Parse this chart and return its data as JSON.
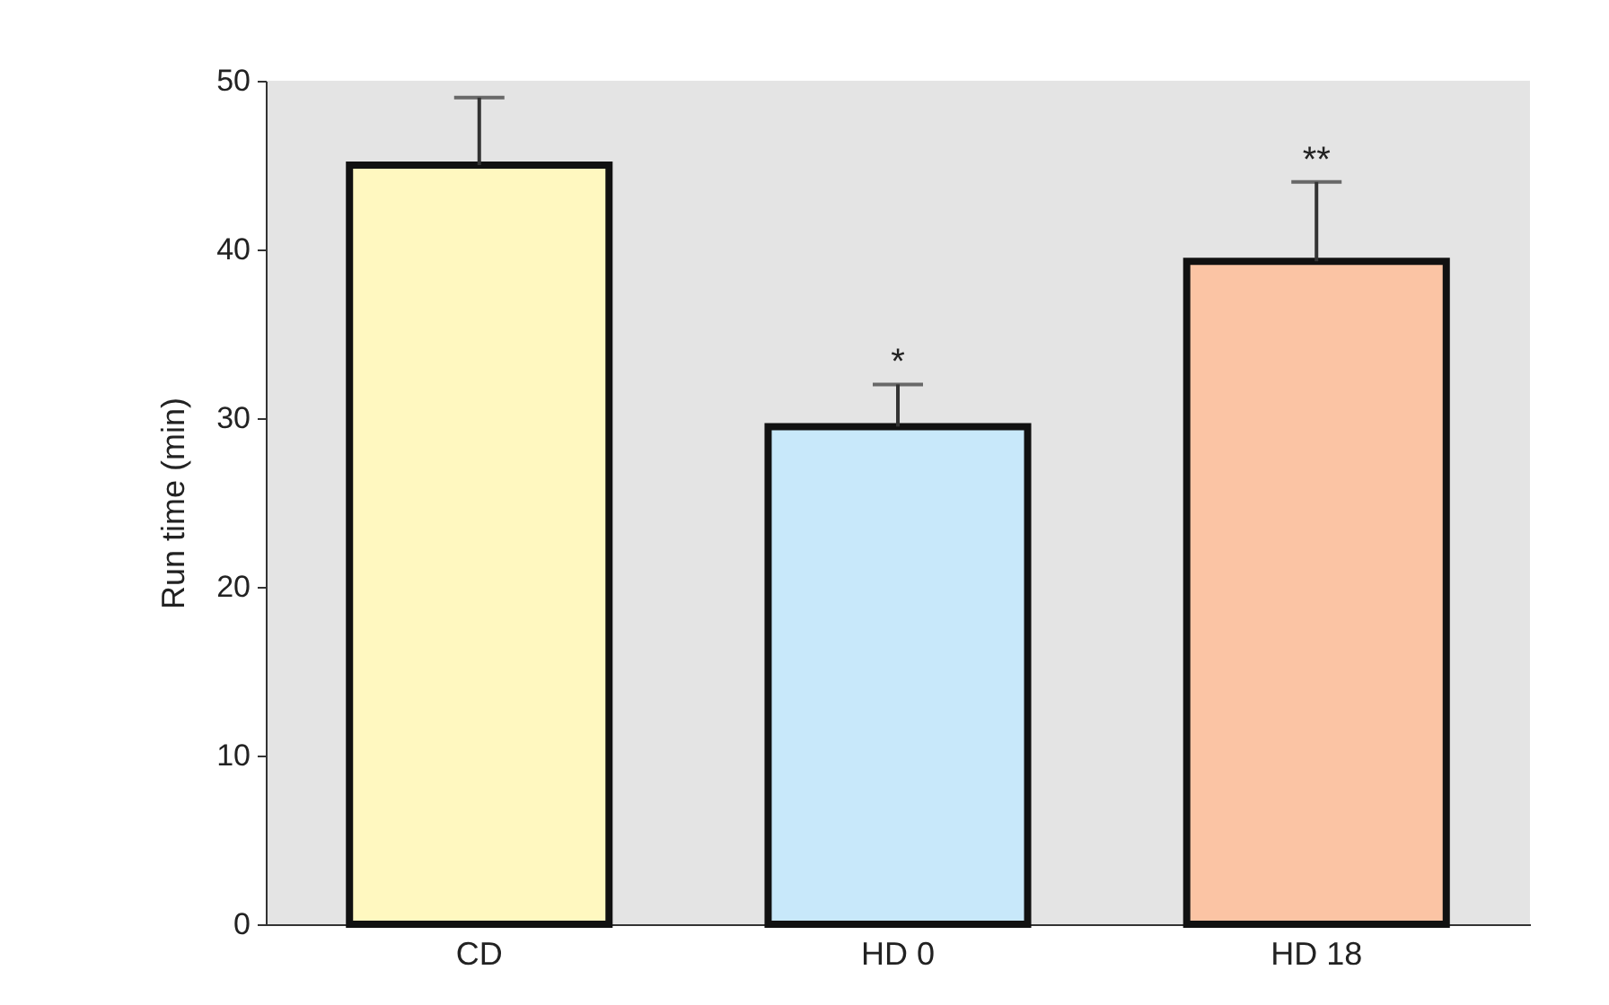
{
  "chart_data": {
    "type": "bar",
    "ylabel": "Run time (min)",
    "categories": [
      "CD",
      "HD 0",
      "HD 18"
    ],
    "values": [
      45,
      29.5,
      39.3
    ],
    "colors": [
      "#fff8c0",
      "#c8e8fa",
      "#fbc4a4"
    ],
    "errors": [
      [
        45,
        49
      ],
      [
        29.5,
        32
      ],
      [
        39.3,
        44
      ]
    ],
    "ylim": [
      0,
      50
    ],
    "yticks": [
      0,
      10,
      20,
      30,
      40,
      50
    ],
    "annotations": [
      {
        "text": "*",
        "x": "HD 0",
        "y": 32
      },
      {
        "text": "**",
        "x": "HD 18",
        "y": 44
      }
    ]
  }
}
